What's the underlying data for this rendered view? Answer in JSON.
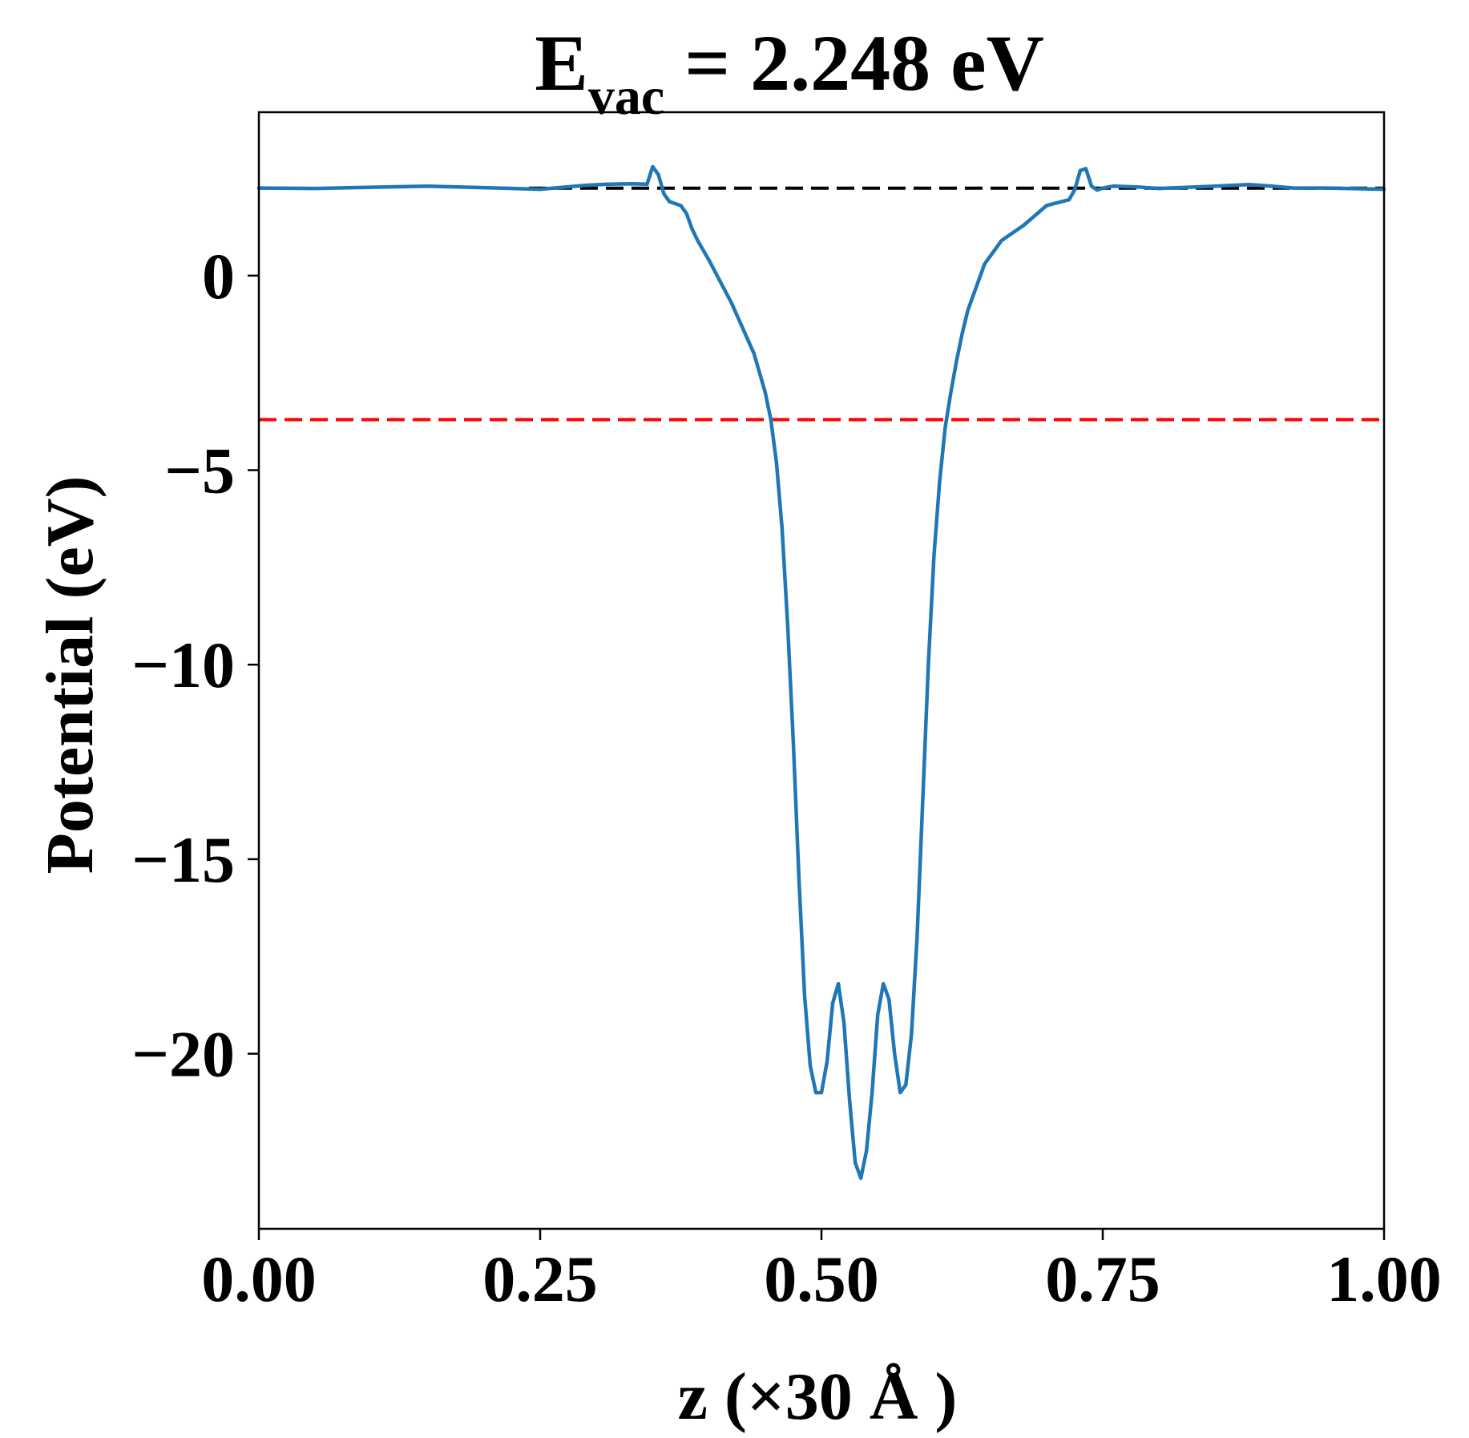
{
  "chart_data": {
    "type": "line",
    "title_main": "E",
    "title_sub": "vac",
    "title_rest": " = 2.248 eV",
    "xlabel": "z (×30 Å )",
    "ylabel": "Potential (eV)",
    "xlim": [
      0.0,
      1.0
    ],
    "ylim": [
      -24.5,
      4.2
    ],
    "xticks": [
      0.0,
      0.25,
      0.5,
      0.75,
      1.0
    ],
    "xtick_labels": [
      "0.00",
      "0.25",
      "0.50",
      "0.75",
      "1.00"
    ],
    "yticks": [
      0,
      -5,
      -10,
      -15,
      -20
    ],
    "ytick_labels": [
      "0",
      "−5",
      "−10",
      "−15",
      "−20"
    ],
    "grid": false,
    "colors": {
      "series": "#1f77b4",
      "vacuum_line": "#000000",
      "fermi_line": "#ff0000"
    },
    "reference_lines": [
      {
        "y": 2.248,
        "style": "dashed",
        "color": "#000000",
        "x_start": 0.24
      },
      {
        "y": -3.7,
        "style": "dashed",
        "color": "#ff0000",
        "x_start": 0.0
      }
    ],
    "series": [
      {
        "x": [
          0.0,
          0.05,
          0.1,
          0.15,
          0.2,
          0.25,
          0.29,
          0.31,
          0.33,
          0.345,
          0.35,
          0.355,
          0.36,
          0.365,
          0.37,
          0.375,
          0.38,
          0.385,
          0.39,
          0.4,
          0.42,
          0.44,
          0.45,
          0.455,
          0.46,
          0.465,
          0.47,
          0.475,
          0.48,
          0.485,
          0.49,
          0.495,
          0.5,
          0.505,
          0.51,
          0.515,
          0.52,
          0.525,
          0.53,
          0.535,
          0.54,
          0.545,
          0.55,
          0.555,
          0.56,
          0.565,
          0.57,
          0.575,
          0.58,
          0.585,
          0.59,
          0.595,
          0.6,
          0.605,
          0.61,
          0.615,
          0.62,
          0.625,
          0.63,
          0.635,
          0.64,
          0.645,
          0.65,
          0.66,
          0.68,
          0.7,
          0.72,
          0.725,
          0.73,
          0.735,
          0.74,
          0.745,
          0.75,
          0.755,
          0.76,
          0.78,
          0.8,
          0.85,
          0.88,
          0.9,
          0.92,
          0.95,
          1.0
        ],
        "y": [
          2.25,
          2.24,
          2.27,
          2.3,
          2.26,
          2.22,
          2.32,
          2.35,
          2.36,
          2.35,
          2.8,
          2.6,
          2.1,
          1.9,
          1.85,
          1.8,
          1.6,
          1.2,
          0.9,
          0.4,
          -0.7,
          -2.0,
          -3.0,
          -3.7,
          -4.8,
          -6.5,
          -9.0,
          -12.0,
          -15.5,
          -18.5,
          -20.3,
          -21.0,
          -21.0,
          -20.2,
          -18.7,
          -18.2,
          -19.2,
          -21.2,
          -22.8,
          -23.2,
          -22.5,
          -21.0,
          -19.0,
          -18.2,
          -18.6,
          -20.0,
          -21.0,
          -20.8,
          -19.5,
          -17.0,
          -13.5,
          -10.0,
          -7.2,
          -5.3,
          -3.9,
          -3.0,
          -2.2,
          -1.5,
          -0.9,
          -0.5,
          -0.1,
          0.3,
          0.5,
          0.9,
          1.3,
          1.8,
          1.95,
          2.2,
          2.7,
          2.75,
          2.3,
          2.2,
          2.25,
          2.28,
          2.3,
          2.28,
          2.24,
          2.3,
          2.34,
          2.3,
          2.25,
          2.25,
          2.22
        ]
      }
    ]
  }
}
